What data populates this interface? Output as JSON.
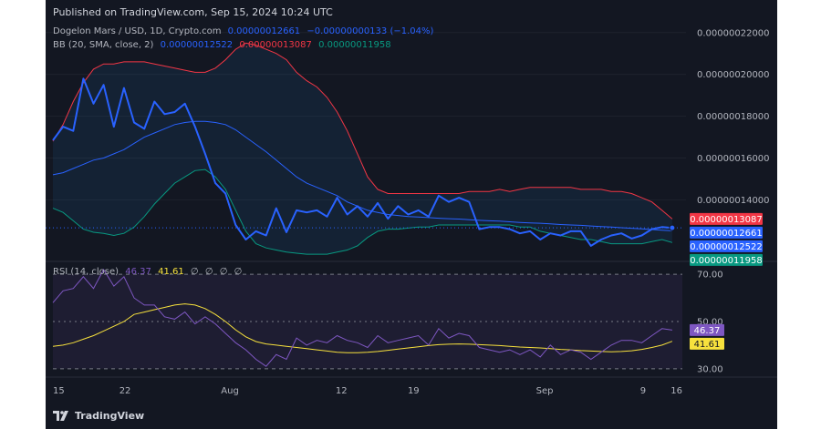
{
  "header": {
    "published": "Published on TradingView.com, Sep 15, 2024 10:24 UTC"
  },
  "footer": {
    "brand": "TradingView"
  },
  "legend": {
    "main": {
      "symbol": "Dogelon Mars / USD, 1D, Crypto.com",
      "price": "0.00000012661",
      "change": "−0.00000000133 (−1.04%)"
    },
    "bb": {
      "label": "BB (20, SMA, close, 2)",
      "basis": "0.00000012522",
      "upper": "0.00000013087",
      "lower": "0.00000011958"
    },
    "rsi": {
      "label": "RSI (14, close)",
      "rsi": "46.37",
      "ma": "41.61",
      "extras": [
        "∅",
        "∅",
        "∅",
        "∅"
      ]
    }
  },
  "colors": {
    "background": "#131722",
    "price": "#2962ff",
    "upper": "#f23645",
    "lower": "#089981",
    "basis": "#2962ff",
    "rsi": "#7e57c2",
    "rsi_ma": "#f7e13d"
  },
  "chart_data": [
    {
      "type": "line",
      "pane": "price",
      "x_ticks": [
        "15",
        "22",
        "Aug",
        "12",
        "19",
        "Sep",
        "9",
        "16"
      ],
      "y_ticks": [
        "0.00000022000",
        "0.00000020000",
        "0.00000018000",
        "0.00000016000",
        "0.00000014000"
      ],
      "ylim": [
        1.11e-07,
        2.26e-07
      ],
      "x_domain": [
        0,
        62
      ],
      "series": [
        {
          "name": "Dogelon Mars / USD",
          "x": [
            0,
            1,
            2,
            3,
            4,
            5,
            6,
            7,
            8,
            9,
            10,
            11,
            12,
            13,
            14,
            15,
            16,
            17,
            18,
            19,
            20,
            21,
            22,
            23,
            24,
            25,
            26,
            27,
            28,
            29,
            30,
            31,
            32,
            33,
            34,
            35,
            36,
            37,
            38,
            39,
            40,
            41,
            42,
            43,
            44,
            45,
            46,
            47,
            48,
            49,
            50,
            51,
            52,
            53,
            54,
            55,
            56,
            57,
            58,
            59,
            60,
            61
          ],
          "values": [
            1.685e-07,
            1.75e-07,
            1.73e-07,
            1.98e-07,
            1.86e-07,
            1.95e-07,
            1.75e-07,
            1.935e-07,
            1.77e-07,
            1.74e-07,
            1.87e-07,
            1.81e-07,
            1.82e-07,
            1.86e-07,
            1.75e-07,
            1.62e-07,
            1.48e-07,
            1.43e-07,
            1.28e-07,
            1.21e-07,
            1.25e-07,
            1.23e-07,
            1.36e-07,
            1.245e-07,
            1.35e-07,
            1.34e-07,
            1.35e-07,
            1.32e-07,
            1.41e-07,
            1.33e-07,
            1.37e-07,
            1.32e-07,
            1.385e-07,
            1.31e-07,
            1.37e-07,
            1.33e-07,
            1.35e-07,
            1.32e-07,
            1.42e-07,
            1.39e-07,
            1.41e-07,
            1.39e-07,
            1.26e-07,
            1.27e-07,
            1.27e-07,
            1.26e-07,
            1.24e-07,
            1.25e-07,
            1.21e-07,
            1.24e-07,
            1.23e-07,
            1.25e-07,
            1.25e-07,
            1.18e-07,
            1.21e-07,
            1.23e-07,
            1.24e-07,
            1.215e-07,
            1.23e-07,
            1.26e-07,
            1.27e-07,
            1.2661e-07
          ]
        },
        {
          "name": "BB upper",
          "x": [
            0,
            1,
            2,
            3,
            4,
            5,
            6,
            7,
            8,
            9,
            10,
            11,
            12,
            13,
            14,
            15,
            16,
            17,
            18,
            19,
            20,
            21,
            22,
            23,
            24,
            25,
            26,
            27,
            28,
            29,
            30,
            31,
            32,
            33,
            34,
            35,
            36,
            37,
            38,
            39,
            40,
            41,
            42,
            43,
            44,
            45,
            46,
            47,
            48,
            49,
            50,
            51,
            52,
            53,
            54,
            55,
            56,
            57,
            58,
            59,
            60,
            61
          ],
          "values": [
            1.68e-07,
            1.76e-07,
            1.87e-07,
            1.96e-07,
            2.025e-07,
            2.05e-07,
            2.05e-07,
            2.06e-07,
            2.06e-07,
            2.06e-07,
            2.05e-07,
            2.04e-07,
            2.03e-07,
            2.02e-07,
            2.01e-07,
            2.01e-07,
            2.03e-07,
            2.07e-07,
            2.12e-07,
            2.15e-07,
            2.14e-07,
            2.12e-07,
            2.1e-07,
            2.07e-07,
            2.01e-07,
            1.97e-07,
            1.94e-07,
            1.89e-07,
            1.82e-07,
            1.73e-07,
            1.62e-07,
            1.51e-07,
            1.45e-07,
            1.43e-07,
            1.43e-07,
            1.43e-07,
            1.43e-07,
            1.43e-07,
            1.43e-07,
            1.43e-07,
            1.43e-07,
            1.44e-07,
            1.44e-07,
            1.44e-07,
            1.45e-07,
            1.44e-07,
            1.45e-07,
            1.46e-07,
            1.46e-07,
            1.46e-07,
            1.46e-07,
            1.46e-07,
            1.45e-07,
            1.45e-07,
            1.45e-07,
            1.44e-07,
            1.44e-07,
            1.43e-07,
            1.41e-07,
            1.39e-07,
            1.35e-07,
            1.3087e-07
          ]
        },
        {
          "name": "BB basis",
          "x": [
            0,
            1,
            2,
            3,
            4,
            5,
            6,
            7,
            8,
            9,
            10,
            11,
            12,
            13,
            14,
            15,
            16,
            17,
            18,
            19,
            20,
            21,
            22,
            23,
            24,
            25,
            26,
            27,
            28,
            29,
            30,
            31,
            32,
            33,
            34,
            35,
            36,
            37,
            38,
            39,
            40,
            41,
            42,
            43,
            44,
            45,
            46,
            47,
            48,
            49,
            50,
            51,
            52,
            53,
            54,
            55,
            56,
            57,
            58,
            59,
            60,
            61
          ],
          "values": [
            1.52e-07,
            1.53e-07,
            1.55e-07,
            1.57e-07,
            1.59e-07,
            1.6e-07,
            1.62e-07,
            1.64e-07,
            1.67e-07,
            1.7e-07,
            1.72e-07,
            1.74e-07,
            1.76e-07,
            1.77e-07,
            1.775e-07,
            1.775e-07,
            1.77e-07,
            1.76e-07,
            1.735e-07,
            1.7e-07,
            1.665e-07,
            1.63e-07,
            1.59e-07,
            1.55e-07,
            1.51e-07,
            1.48e-07,
            1.46e-07,
            1.44e-07,
            1.42e-07,
            1.39e-07,
            1.37e-07,
            1.35e-07,
            1.34e-07,
            1.33e-07,
            1.325e-07,
            1.32e-07,
            1.318e-07,
            1.315e-07,
            1.312e-07,
            1.31e-07,
            1.308e-07,
            1.305e-07,
            1.302e-07,
            1.3e-07,
            1.298e-07,
            1.295e-07,
            1.292e-07,
            1.29e-07,
            1.288e-07,
            1.285e-07,
            1.282e-07,
            1.28e-07,
            1.278e-07,
            1.275e-07,
            1.272e-07,
            1.27e-07,
            1.267e-07,
            1.264e-07,
            1.261e-07,
            1.258e-07,
            1.255e-07,
            1.2522e-07
          ]
        },
        {
          "name": "BB lower",
          "x": [
            0,
            1,
            2,
            3,
            4,
            5,
            6,
            7,
            8,
            9,
            10,
            11,
            12,
            13,
            14,
            15,
            16,
            17,
            18,
            19,
            20,
            21,
            22,
            23,
            24,
            25,
            26,
            27,
            28,
            29,
            30,
            31,
            32,
            33,
            34,
            35,
            36,
            37,
            38,
            39,
            40,
            41,
            42,
            43,
            44,
            45,
            46,
            47,
            48,
            49,
            50,
            51,
            52,
            53,
            54,
            55,
            56,
            57,
            58,
            59,
            60,
            61
          ],
          "values": [
            1.36e-07,
            1.34e-07,
            1.3e-07,
            1.26e-07,
            1.245e-07,
            1.24e-07,
            1.23e-07,
            1.24e-07,
            1.27e-07,
            1.32e-07,
            1.38e-07,
            1.43e-07,
            1.48e-07,
            1.51e-07,
            1.54e-07,
            1.545e-07,
            1.51e-07,
            1.45e-07,
            1.35e-07,
            1.25e-07,
            1.19e-07,
            1.17e-07,
            1.16e-07,
            1.15e-07,
            1.145e-07,
            1.14e-07,
            1.14e-07,
            1.14e-07,
            1.15e-07,
            1.16e-07,
            1.18e-07,
            1.22e-07,
            1.25e-07,
            1.26e-07,
            1.26e-07,
            1.265e-07,
            1.27e-07,
            1.27e-07,
            1.28e-07,
            1.28e-07,
            1.28e-07,
            1.28e-07,
            1.28e-07,
            1.28e-07,
            1.28e-07,
            1.28e-07,
            1.27e-07,
            1.27e-07,
            1.25e-07,
            1.24e-07,
            1.23e-07,
            1.22e-07,
            1.21e-07,
            1.21e-07,
            1.2e-07,
            1.19e-07,
            1.19e-07,
            1.19e-07,
            1.19e-07,
            1.2e-07,
            1.21e-07,
            1.1958e-07
          ]
        }
      ]
    },
    {
      "type": "line",
      "pane": "rsi",
      "y_ticks": [
        "70.00",
        "50.00",
        "30.00"
      ],
      "ylim": [
        28,
        72
      ],
      "bands": {
        "upper": 70,
        "middle": 50,
        "lower": 30
      },
      "series": [
        {
          "name": "RSI",
          "x": [
            0,
            1,
            2,
            3,
            4,
            5,
            6,
            7,
            8,
            9,
            10,
            11,
            12,
            13,
            14,
            15,
            16,
            17,
            18,
            19,
            20,
            21,
            22,
            23,
            24,
            25,
            26,
            27,
            28,
            29,
            30,
            31,
            32,
            33,
            34,
            35,
            36,
            37,
            38,
            39,
            40,
            41,
            42,
            43,
            44,
            45,
            46,
            47,
            48,
            49,
            50,
            51,
            52,
            53,
            54,
            55,
            56,
            57,
            58,
            59,
            60,
            61
          ],
          "values": [
            58,
            63,
            64,
            69,
            64,
            72,
            65,
            69,
            60,
            57,
            57,
            52,
            51,
            54,
            49,
            52,
            49,
            45,
            41,
            38,
            34,
            31,
            36,
            34,
            43,
            40,
            42,
            41,
            44,
            42,
            41,
            39,
            44,
            41,
            42,
            43,
            44,
            40,
            47,
            43,
            45,
            44,
            39,
            38,
            37,
            38,
            36,
            38,
            35,
            40,
            36,
            38,
            37,
            34,
            37,
            40,
            42,
            42,
            41,
            44,
            47,
            46.37
          ]
        },
        {
          "name": "RSI-based MA",
          "x": [
            0,
            1,
            2,
            3,
            4,
            5,
            6,
            7,
            8,
            9,
            10,
            11,
            12,
            13,
            14,
            15,
            16,
            17,
            18,
            19,
            20,
            21,
            22,
            23,
            24,
            25,
            26,
            27,
            28,
            29,
            30,
            31,
            32,
            33,
            34,
            35,
            36,
            37,
            38,
            39,
            40,
            41,
            42,
            43,
            44,
            45,
            46,
            47,
            48,
            49,
            50,
            51,
            52,
            53,
            54,
            55,
            56,
            57,
            58,
            59,
            60,
            61
          ],
          "values": [
            39.5,
            40,
            41,
            42.5,
            44,
            46,
            48,
            50,
            53,
            54,
            55,
            56,
            57,
            57.5,
            57,
            55.5,
            53,
            50,
            46.5,
            43.5,
            41.5,
            40.5,
            40,
            39.5,
            39,
            38.5,
            38,
            37.5,
            37,
            36.8,
            36.8,
            37,
            37.3,
            37.8,
            38.3,
            38.8,
            39.3,
            39.8,
            40.2,
            40.4,
            40.5,
            40.4,
            40.2,
            40,
            39.8,
            39.5,
            39.2,
            39,
            38.8,
            38.5,
            38.2,
            38,
            37.7,
            37.5,
            37.3,
            37.2,
            37.3,
            37.6,
            38.2,
            39,
            40,
            41.61
          ]
        }
      ]
    }
  ],
  "price_tags": [
    {
      "value": "0.00000013087",
      "color": "#f23645"
    },
    {
      "value": "0.00000012661",
      "color": "#2962ff"
    },
    {
      "value": "0.00000012522",
      "color": "#2962ff"
    },
    {
      "value": "0.00000011958",
      "color": "#089981"
    }
  ],
  "rsi_tags": [
    {
      "value": "46.37",
      "color": "#7e57c2"
    },
    {
      "value": "41.61",
      "color": "#f7e13d"
    }
  ]
}
